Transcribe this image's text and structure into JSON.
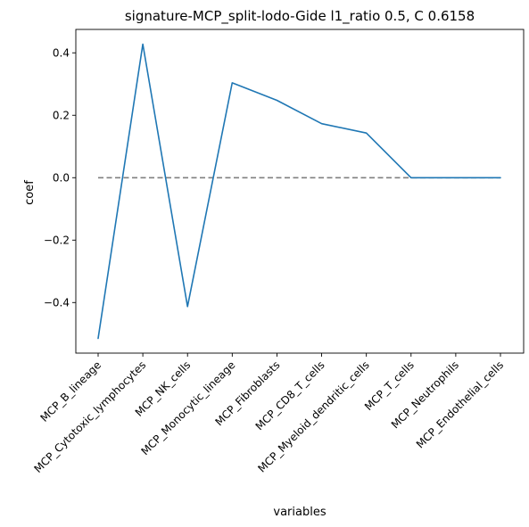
{
  "chart_data": {
    "type": "line",
    "title": "signature-MCP_split-lodo-Gide l1_ratio 0.5, C 0.6158",
    "xlabel": "variables",
    "ylabel": "coef",
    "categories": [
      "MCP_B_lineage",
      "MCP_Cytotoxic_lymphocytes",
      "MCP_NK_cells",
      "MCP_Monocytic_lineage",
      "MCP_Fibroblasts",
      "MCP_CD8_T_cells",
      "MCP_Myeloid_dendritic_cells",
      "MCP_T_cells",
      "MCP_Neutrophils",
      "MCP_Endothelial_cells"
    ],
    "series": [
      {
        "values": [
          -0.515,
          0.428,
          -0.413,
          0.304,
          0.248,
          0.173,
          0.143,
          0.0,
          0.0,
          0.0
        ],
        "color": "#1f77b4"
      }
    ],
    "reference_line": {
      "y": 0.0,
      "style": "dashed",
      "color": "#808080"
    },
    "yticks": [
      -0.4,
      -0.2,
      0.0,
      0.2,
      0.4
    ],
    "ytick_labels": [
      "−0.4",
      "−0.2",
      "0.0",
      "0.2",
      "0.4"
    ],
    "ylim": [
      -0.562,
      0.475
    ],
    "grid": false,
    "legend": "none"
  }
}
